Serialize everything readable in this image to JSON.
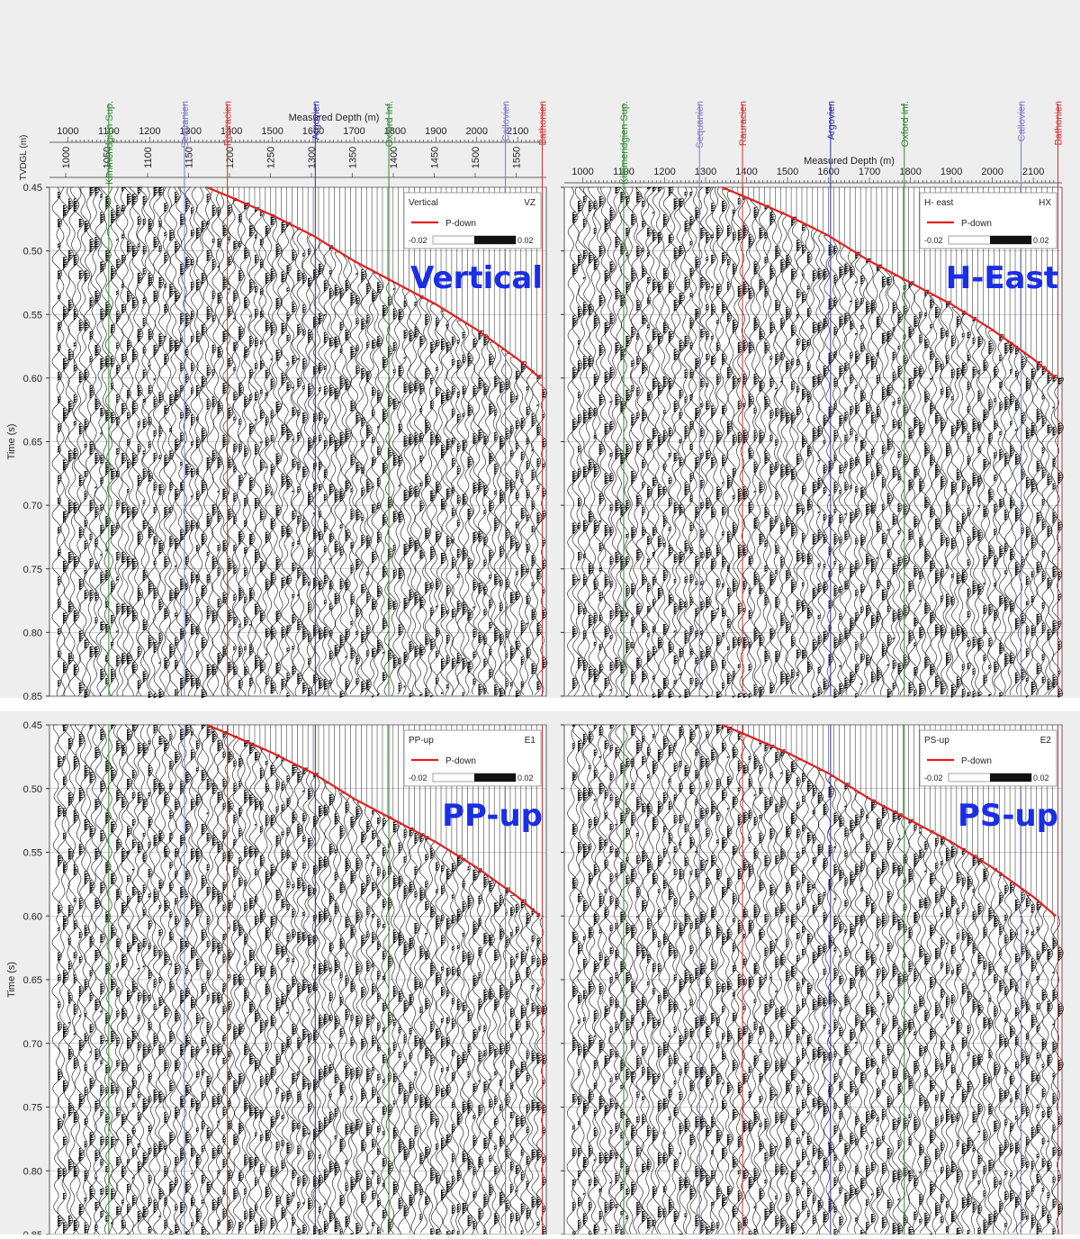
{
  "chart_data": {
    "type": "line",
    "shared": {
      "y_label": "Time (s)",
      "y_ticks": [
        "0.45",
        "0.50",
        "0.55",
        "0.60",
        "0.65",
        "0.70",
        "0.75",
        "0.80",
        "0.85"
      ],
      "ylim": [
        0.45,
        0.85
      ],
      "x_label": "Measured Depth (m)",
      "x_ticks": [
        "1000",
        "1100",
        "1200",
        "1300",
        "1400",
        "1500",
        "1600",
        "1700",
        "1800",
        "1900",
        "2000",
        "2100"
      ],
      "xlim": [
        955,
        2170
      ],
      "tvd_label": "TVDGL (m)",
      "tvd_ticks": [
        "1000",
        "1050",
        "1100",
        "1150",
        "1200",
        "1250",
        "1300",
        "1350",
        "1400",
        "1450",
        "1500",
        "1550"
      ],
      "horizons": [
        {
          "name": "Kimmeridgien Sup.",
          "md": 1100,
          "color": "#2e8b2e"
        },
        {
          "name": "Sequanien",
          "md": 1285,
          "color": "#7a7acc"
        },
        {
          "name": "Rauracien",
          "md": 1390,
          "color": "#d43030"
        },
        {
          "name": "Argovien",
          "md": 1605,
          "color": "#2a2aa8"
        },
        {
          "name": "Oxford Inf.",
          "md": 1785,
          "color": "#2e8b2e"
        },
        {
          "name": "Callovien",
          "md": 2070,
          "color": "#7a7acc"
        },
        {
          "name": "Bathonien",
          "md": 2160,
          "color": "#d43030"
        }
      ],
      "p_down": {
        "name": "P-down",
        "md": [
          1340,
          1400,
          1500,
          1600,
          1700,
          1800,
          1900,
          2000,
          2100,
          2155
        ],
        "time": [
          0.45,
          0.458,
          0.472,
          0.488,
          0.508,
          0.525,
          0.542,
          0.562,
          0.585,
          0.6
        ]
      },
      "scale_min": "-0.02",
      "scale_max": "0.02"
    },
    "panels": [
      {
        "id": "vertical",
        "legend_title": "Vertical",
        "legend_code": "VZ",
        "label": "Vertical"
      },
      {
        "id": "h-east",
        "legend_title": "H- east",
        "legend_code": "HX",
        "label": "H-East"
      },
      {
        "id": "pp-up",
        "legend_title": "PP-up",
        "legend_code": "E1",
        "label": "PP-up"
      },
      {
        "id": "ps-up",
        "legend_title": "PS-up",
        "legend_code": "E2",
        "label": "PS-up"
      }
    ]
  }
}
